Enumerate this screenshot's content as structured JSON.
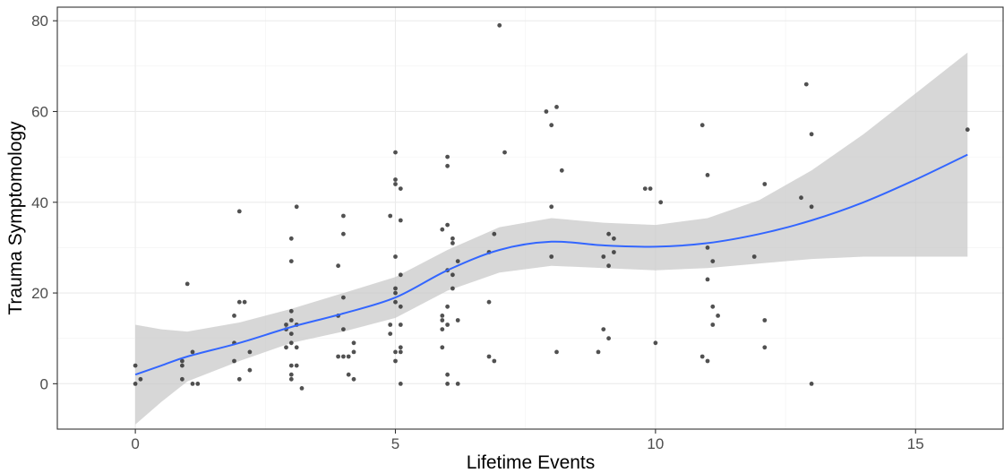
{
  "chart_data": {
    "type": "scatter",
    "title": "",
    "xlabel": "Lifetime  Events",
    "ylabel": "Trauma  Symptomology",
    "xlim": [
      -1.5,
      16.7
    ],
    "ylim": [
      -10,
      83
    ],
    "x_ticks": [
      0,
      5,
      10,
      15
    ],
    "y_ticks": [
      0,
      20,
      40,
      60,
      80
    ],
    "grid": true,
    "legend": "none",
    "colors": {
      "points": "#333333",
      "smooth_line": "#3366FF",
      "confidence_band": "#c9c9c9"
    },
    "points": [
      [
        0,
        0
      ],
      [
        0,
        4
      ],
      [
        0.1,
        1
      ],
      [
        0.9,
        4
      ],
      [
        0.9,
        5
      ],
      [
        1,
        22
      ],
      [
        0.9,
        1
      ],
      [
        1.1,
        7
      ],
      [
        1.1,
        0
      ],
      [
        1.2,
        0
      ],
      [
        1.9,
        15
      ],
      [
        1.9,
        9
      ],
      [
        1.9,
        5
      ],
      [
        2,
        18
      ],
      [
        2.1,
        18
      ],
      [
        2,
        38
      ],
      [
        2,
        1
      ],
      [
        2.2,
        7
      ],
      [
        2.2,
        3
      ],
      [
        2.9,
        8
      ],
      [
        2.9,
        12
      ],
      [
        2.9,
        13
      ],
      [
        3,
        16
      ],
      [
        3,
        32
      ],
      [
        3,
        27
      ],
      [
        3.1,
        39
      ],
      [
        3,
        14
      ],
      [
        3,
        9
      ],
      [
        3.1,
        13
      ],
      [
        3,
        4
      ],
      [
        3,
        2
      ],
      [
        3,
        1
      ],
      [
        3.1,
        4
      ],
      [
        3.1,
        8
      ],
      [
        3.2,
        -1
      ],
      [
        3,
        11
      ],
      [
        3.9,
        15
      ],
      [
        3.9,
        26
      ],
      [
        4,
        37
      ],
      [
        4,
        33
      ],
      [
        4,
        19
      ],
      [
        4,
        12
      ],
      [
        4,
        6
      ],
      [
        4.1,
        6
      ],
      [
        4.1,
        2
      ],
      [
        4.2,
        9
      ],
      [
        4.2,
        7
      ],
      [
        4.2,
        1
      ],
      [
        3.9,
        6
      ],
      [
        4.9,
        13
      ],
      [
        4.9,
        11
      ],
      [
        4.9,
        37
      ],
      [
        5,
        51
      ],
      [
        5,
        44
      ],
      [
        5,
        45
      ],
      [
        5.1,
        43
      ],
      [
        5.1,
        36
      ],
      [
        5,
        28
      ],
      [
        5.1,
        24
      ],
      [
        5,
        21
      ],
      [
        5,
        18
      ],
      [
        5.1,
        17
      ],
      [
        5.1,
        13
      ],
      [
        5.1,
        8
      ],
      [
        5,
        7
      ],
      [
        5.1,
        7
      ],
      [
        5,
        5
      ],
      [
        5.1,
        0
      ],
      [
        5,
        20
      ],
      [
        5.9,
        34
      ],
      [
        6,
        35
      ],
      [
        6,
        50
      ],
      [
        6,
        48
      ],
      [
        6.1,
        32
      ],
      [
        6.2,
        27
      ],
      [
        6.1,
        31
      ],
      [
        6,
        25
      ],
      [
        6.1,
        24
      ],
      [
        6,
        17
      ],
      [
        5.9,
        15
      ],
      [
        5.9,
        14
      ],
      [
        6,
        13
      ],
      [
        5.9,
        12
      ],
      [
        5.9,
        8
      ],
      [
        6,
        2
      ],
      [
        6,
        0
      ],
      [
        6.1,
        21
      ],
      [
        6.2,
        14
      ],
      [
        6.2,
        0
      ],
      [
        6.8,
        29
      ],
      [
        6.9,
        33
      ],
      [
        7,
        79
      ],
      [
        7.1,
        51
      ],
      [
        6.8,
        18
      ],
      [
        6.8,
        6
      ],
      [
        6.9,
        5
      ],
      [
        7.9,
        60
      ],
      [
        8,
        57
      ],
      [
        8.1,
        61
      ],
      [
        8.2,
        47
      ],
      [
        8,
        39
      ],
      [
        8,
        28
      ],
      [
        8.1,
        7
      ],
      [
        8.9,
        7
      ],
      [
        9,
        12
      ],
      [
        9,
        28
      ],
      [
        9.1,
        26
      ],
      [
        9.1,
        33
      ],
      [
        9.2,
        32
      ],
      [
        9.2,
        29
      ],
      [
        9.1,
        10
      ],
      [
        9.8,
        43
      ],
      [
        9.9,
        43
      ],
      [
        10.1,
        40
      ],
      [
        10,
        9
      ],
      [
        10.9,
        57
      ],
      [
        11,
        46
      ],
      [
        11,
        30
      ],
      [
        11.1,
        27
      ],
      [
        11,
        23
      ],
      [
        11.1,
        17
      ],
      [
        11.2,
        15
      ],
      [
        11.1,
        13
      ],
      [
        10.9,
        6
      ],
      [
        11,
        5
      ],
      [
        11.9,
        28
      ],
      [
        12.1,
        44
      ],
      [
        12.1,
        14
      ],
      [
        12.1,
        8
      ],
      [
        12.8,
        41
      ],
      [
        12.9,
        66
      ],
      [
        13,
        55
      ],
      [
        13,
        39
      ],
      [
        13,
        0
      ],
      [
        16,
        56
      ]
    ],
    "smooth_line": [
      [
        0,
        2
      ],
      [
        0.5,
        4
      ],
      [
        1,
        6
      ],
      [
        2,
        9
      ],
      [
        3,
        12.5
      ],
      [
        4,
        15.5
      ],
      [
        5,
        19
      ],
      [
        6,
        25
      ],
      [
        7,
        29.5
      ],
      [
        8,
        31.3
      ],
      [
        9,
        30.5
      ],
      [
        10,
        30.2
      ],
      [
        11,
        31
      ],
      [
        12,
        33
      ],
      [
        13,
        36
      ],
      [
        14,
        40
      ],
      [
        15,
        45
      ],
      [
        16,
        50.5
      ]
    ],
    "band_upper": [
      [
        0,
        13
      ],
      [
        0.5,
        12
      ],
      [
        1,
        11.5
      ],
      [
        2,
        13.5
      ],
      [
        3,
        16.5
      ],
      [
        4,
        20
      ],
      [
        5,
        23.5
      ],
      [
        6,
        29.5
      ],
      [
        7,
        34.5
      ],
      [
        8,
        36.5
      ],
      [
        9,
        35.5
      ],
      [
        10,
        35
      ],
      [
        11,
        36.5
      ],
      [
        12,
        40.5
      ],
      [
        13,
        47
      ],
      [
        14,
        55
      ],
      [
        15,
        64
      ],
      [
        16,
        73
      ]
    ],
    "band_lower": [
      [
        0,
        -9
      ],
      [
        0.5,
        -4
      ],
      [
        1,
        0.5
      ],
      [
        2,
        5
      ],
      [
        3,
        9
      ],
      [
        4,
        11.5
      ],
      [
        5,
        14.5
      ],
      [
        6,
        20.5
      ],
      [
        7,
        24.5
      ],
      [
        8,
        26
      ],
      [
        9,
        25.5
      ],
      [
        10,
        25
      ],
      [
        11,
        25.5
      ],
      [
        12,
        26.5
      ],
      [
        13,
        27.5
      ],
      [
        14,
        28
      ],
      [
        15,
        28
      ],
      [
        16,
        28
      ]
    ]
  }
}
